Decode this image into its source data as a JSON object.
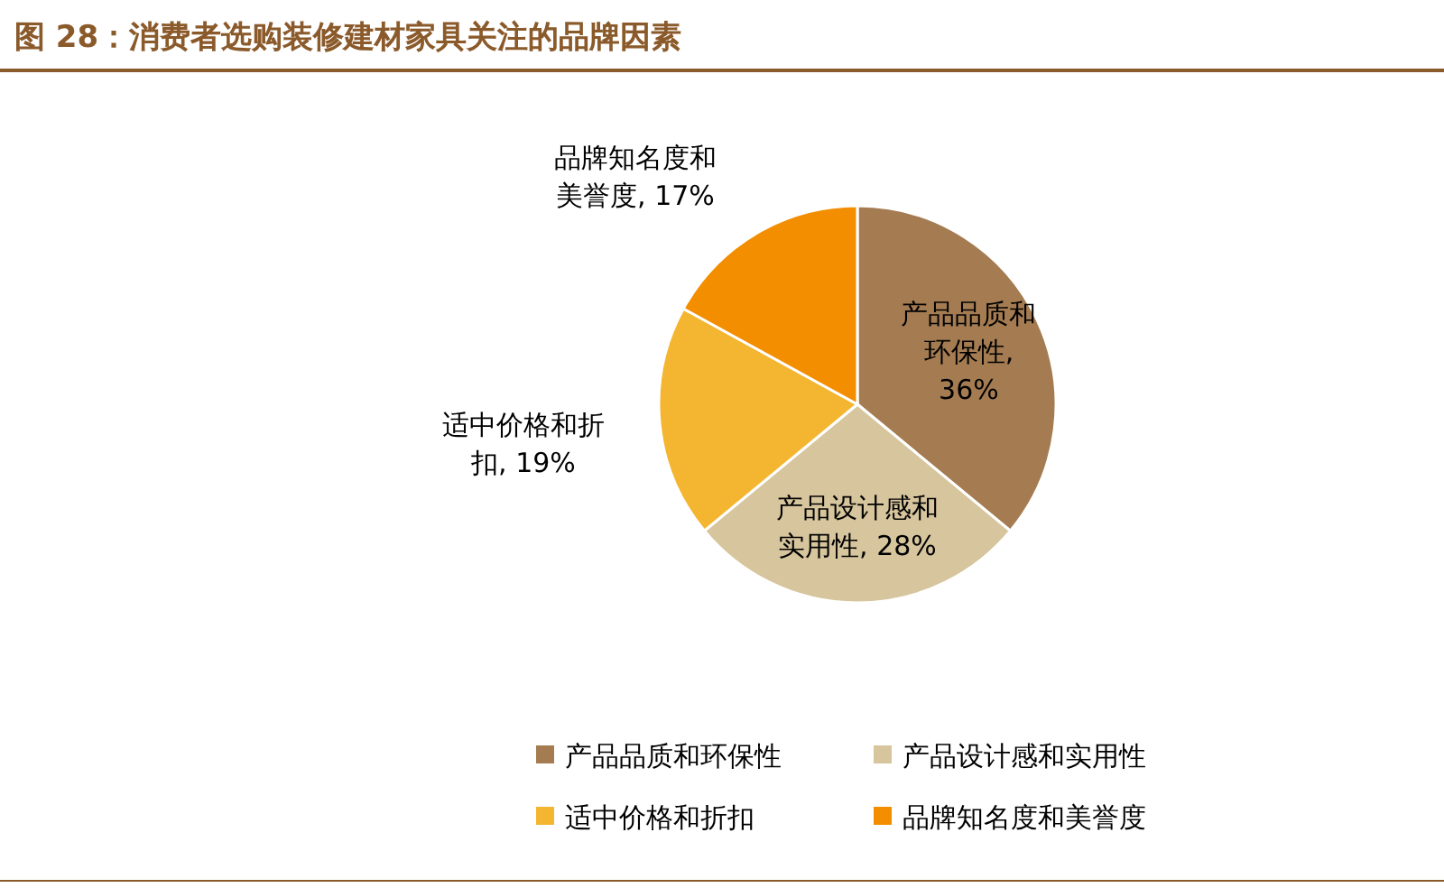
{
  "chart_data": {
    "type": "pie",
    "title": "图 28：消费者选购装修建材家具关注的品牌因素",
    "categories": [
      "产品品质和环保性",
      "产品设计感和实用性",
      "适中价格和折扣",
      "品牌知名度和美誉度"
    ],
    "values": [
      36,
      28,
      19,
      17
    ],
    "value_labels": [
      "产品品质和环保性, 36%",
      "产品设计感和实用性, 28%",
      "适中价格和折扣, 19%",
      "品牌知名度和美誉度, 17%"
    ],
    "colors": [
      "#a57c52",
      "#d6c59d",
      "#f4b631",
      "#f28e00"
    ],
    "legend": "bottom"
  }
}
